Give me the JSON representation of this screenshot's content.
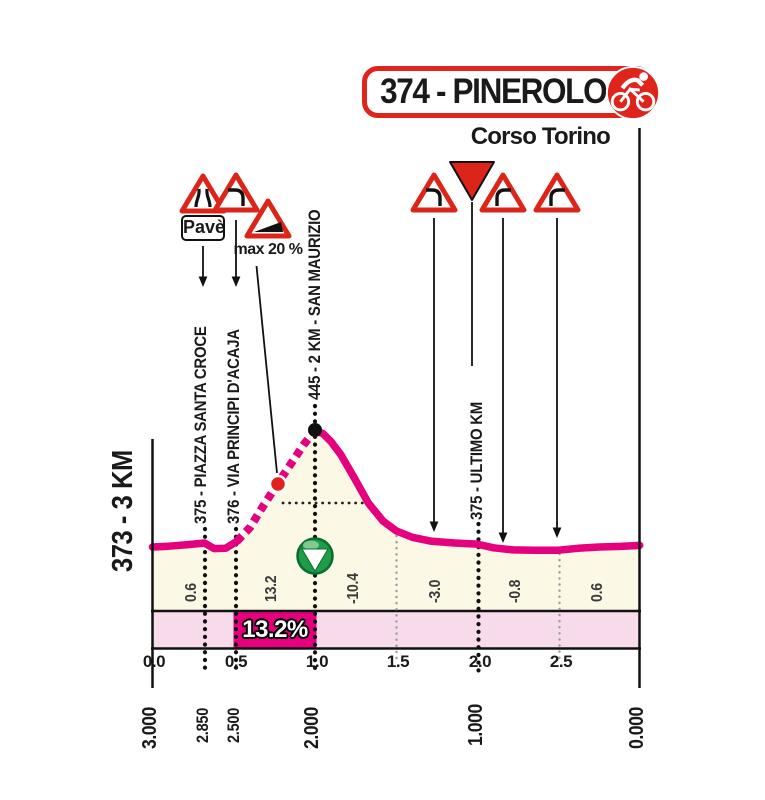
{
  "header": {
    "title": "374 - PINEROLO",
    "subtitle": "Corso Torino",
    "badge_icon": "cyclist-icon"
  },
  "signs": {
    "pave_label": "Pavè",
    "max_gradient_label": "max 20 %",
    "left": [
      "narrow-road-sign",
      "curve-left-sign",
      "steep-gradient-sign"
    ],
    "right": [
      "curve-left-sign",
      "finish-inverted-triangle-sign",
      "curve-right-sign",
      "curve-right-sign"
    ]
  },
  "labels": {
    "start": "373 - 3 KM",
    "piazza": "375 - PIAZZA SANTA CROCE",
    "via": "376 - VIA PRINCIPI D'ACAJA",
    "sanmaurizio": "445 - 2 KM - SAN MAURIZIO",
    "ultimo": "375 - ULTIMO KM"
  },
  "chart_data": {
    "type": "area",
    "title": "374 - PINEROLO",
    "subtitle": "Corso Torino",
    "x_ticks": [
      "0.0",
      "0.5",
      "1.0",
      "1.5",
      "2.0",
      "2.5"
    ],
    "km_to_go": [
      "3.000",
      "2.850",
      "2.500",
      "2.000",
      "1.000",
      "0.000"
    ],
    "segment_gradients_pct": [
      "0.6",
      "13.2",
      "-10.4",
      "-3.0",
      "-0.8",
      "0.6"
    ],
    "highlighted_gradient": "13.2%",
    "max_gradient": "max 20 %",
    "waypoints": [
      {
        "km_to_go": "3.000",
        "elevation_m": 373,
        "label": "373 - 3 KM"
      },
      {
        "km_to_go": "2.850",
        "elevation_m": 375,
        "label": "375 - PIAZZA SANTA CROCE"
      },
      {
        "km_to_go": "2.500",
        "elevation_m": 376,
        "label": "376 - VIA PRINCIPI D'ACAJA"
      },
      {
        "km_to_go": "2.000",
        "elevation_m": 445,
        "label": "445 - 2 KM - SAN MAURIZIO"
      },
      {
        "km_to_go": "1.000",
        "elevation_m": 375,
        "label": "375 - ULTIMO KM"
      },
      {
        "km_to_go": "0.000",
        "elevation_m": 374,
        "label": "374 - PINEROLO"
      }
    ],
    "profile_km_elev": [
      [
        0.0,
        373.0
      ],
      [
        0.1,
        373.5
      ],
      [
        0.22,
        374.5
      ],
      [
        0.32,
        375.5
      ],
      [
        0.38,
        372.0
      ],
      [
        0.45,
        372.2
      ],
      [
        0.52,
        376.5
      ],
      [
        0.6,
        385.0
      ],
      [
        0.68,
        398.0
      ],
      [
        0.77,
        412.0
      ],
      [
        0.85,
        424.0
      ],
      [
        0.93,
        436.0
      ],
      [
        1.0,
        445.0
      ],
      [
        1.05,
        443.0
      ],
      [
        1.1,
        438.0
      ],
      [
        1.16,
        430.0
      ],
      [
        1.24,
        416.0
      ],
      [
        1.33,
        400.0
      ],
      [
        1.42,
        389.0
      ],
      [
        1.5,
        383.0
      ],
      [
        1.6,
        379.0
      ],
      [
        1.72,
        376.5
      ],
      [
        1.86,
        375.5
      ],
      [
        2.0,
        374.8
      ],
      [
        2.1,
        372.5
      ],
      [
        2.22,
        371.2
      ],
      [
        2.35,
        371.0
      ],
      [
        2.5,
        371.0
      ],
      [
        2.62,
        372.2
      ],
      [
        2.75,
        373.0
      ],
      [
        2.88,
        373.4
      ],
      [
        3.0,
        374.0
      ]
    ],
    "dashed_segment_km": [
      0.52,
      1.0
    ],
    "colors": {
      "profile_pink": "#E5007D",
      "band_pink": "#F8DBEB",
      "area_cream": "#FBF8E5",
      "sign_red": "#DD2418",
      "marker_green": "#1E9C47"
    }
  }
}
